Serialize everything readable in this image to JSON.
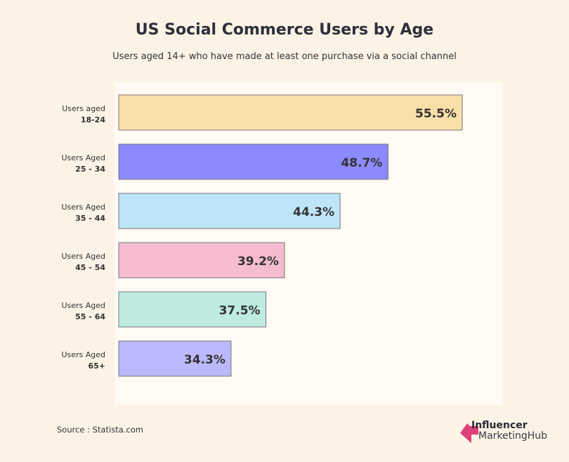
{
  "chart_data": {
    "type": "bar",
    "orientation": "horizontal",
    "title": "US Social Commerce Users by Age",
    "subtitle": "Users aged 14+ who have made at least one purchase via a social channel",
    "categories": [
      [
        "Users aged",
        "18-24"
      ],
      [
        "Users Aged",
        "25 - 34"
      ],
      [
        "Users Aged",
        "35 - 44"
      ],
      [
        "Users Aged",
        "45 - 54"
      ],
      [
        "Users Aged",
        "55 - 64"
      ],
      [
        "Users Aged",
        "65+"
      ]
    ],
    "values": [
      55.5,
      48.7,
      44.3,
      39.2,
      37.5,
      34.3
    ],
    "data_labels": [
      "55.5%",
      "48.7%",
      "44.3%",
      "39.2%",
      "37.5%",
      "34.3%"
    ],
    "colors": [
      "#fadfaa",
      "#8c8aff",
      "#bde5f7",
      "#f5bcd0",
      "#bdebe0",
      "#bbb9fb"
    ],
    "xlim": [
      24,
      56
    ],
    "grid": false,
    "legend": "none"
  },
  "source": "Source : Statista.com",
  "logo": {
    "line1": "Influencer",
    "line2": "MarketingHub",
    "color": "#e0407a"
  }
}
